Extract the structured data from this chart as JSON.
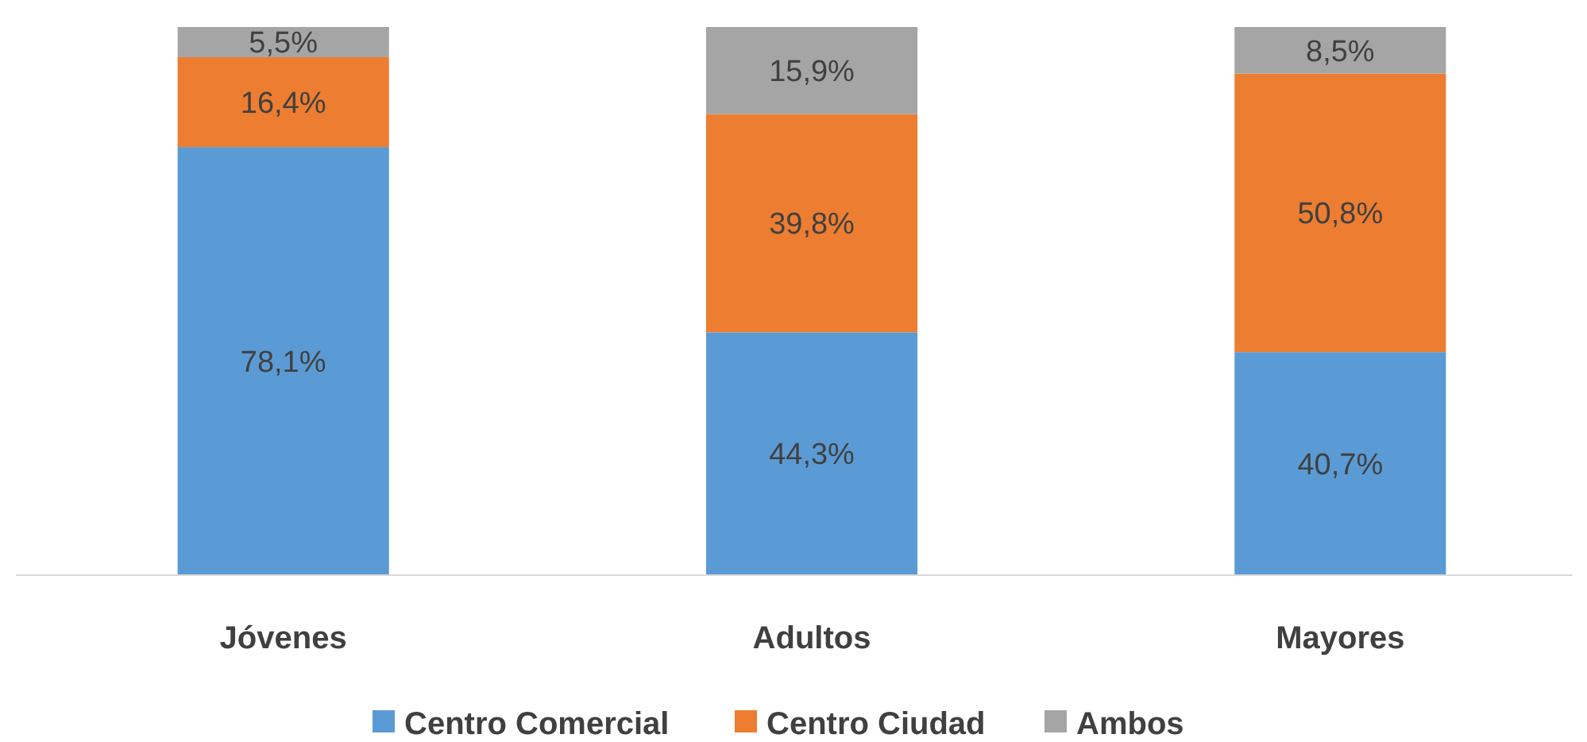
{
  "chart_data": {
    "type": "bar",
    "stacked": true,
    "categories": [
      "Jóvenes",
      "Adultos",
      "Mayores"
    ],
    "series": [
      {
        "name": "Centro Comercial",
        "color": "#5b9bd5",
        "values": [
          78.1,
          44.3,
          40.7
        ],
        "value_labels": [
          "78,1%",
          "44,3%",
          "40,7%"
        ]
      },
      {
        "name": "Centro Ciudad",
        "color": "#ed7d31",
        "values": [
          16.4,
          39.8,
          50.8
        ],
        "value_labels": [
          "16,4%",
          "39,8%",
          "50,8%"
        ]
      },
      {
        "name": "Ambos",
        "color": "#a5a5a5",
        "values": [
          5.5,
          15.9,
          8.5
        ],
        "value_labels": [
          "5,5%",
          "15,9%",
          "8,5%"
        ]
      }
    ],
    "legend": "bottom"
  }
}
